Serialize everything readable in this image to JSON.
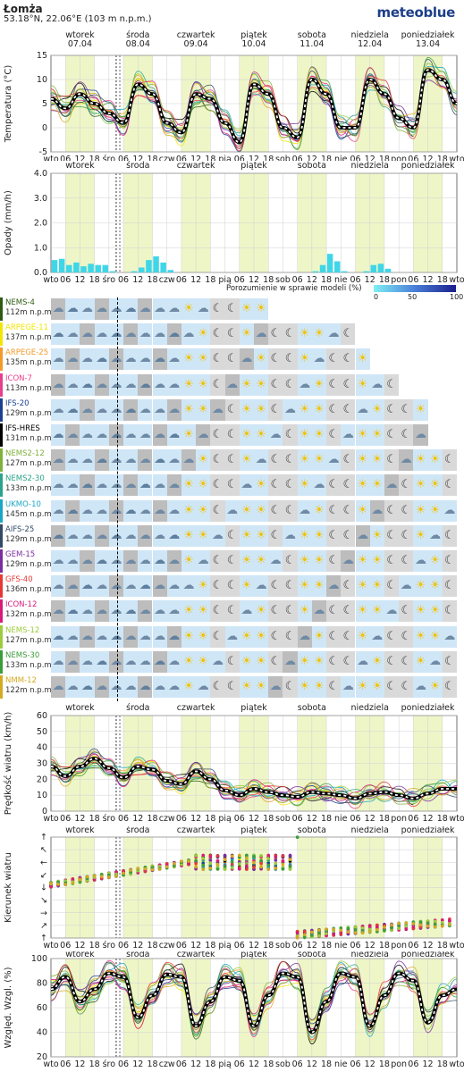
{
  "header": {
    "location": "Łomża",
    "coords": "53.18°N, 22.06°E (103 m n.p.m.)",
    "brand": "meteoblue"
  },
  "days": [
    {
      "name": "wtorek",
      "date": "07.04",
      "weekend": false
    },
    {
      "name": "środa",
      "date": "08.04",
      "weekend": false
    },
    {
      "name": "czwartek",
      "date": "09.04",
      "weekend": false
    },
    {
      "name": "piątek",
      "date": "10.04",
      "weekend": false
    },
    {
      "name": "sobota",
      "date": "11.04",
      "weekend": true
    },
    {
      "name": "niedziela",
      "date": "12.04",
      "weekend": true
    },
    {
      "name": "poniedziałek",
      "date": "13.04",
      "weekend": false
    }
  ],
  "hour_ticks": [
    "wto",
    "06",
    "12",
    "18",
    "śro",
    "06",
    "12",
    "18",
    "czw",
    "06",
    "12",
    "18",
    "pią",
    "06",
    "12",
    "18",
    "sob",
    "06",
    "12",
    "18",
    "nie",
    "06",
    "12",
    "18",
    "pon",
    "06",
    "12",
    "18",
    "wto"
  ],
  "colors": {
    "day_shade": "#eef6c8",
    "weekend_red": "#d0021b",
    "ensemble_mean": "#000000",
    "precip": "#3fd6e8",
    "agreement_low": "#7ff0f5",
    "agreement_high": "#1a1f8c",
    "cloudy_bg": "#cfe6f7",
    "overcast_bg": "#bdbdbd"
  },
  "agreement": {
    "label": "Porozumienie w sprawie modeli (%)",
    "ticks": [
      "0",
      "50",
      "100"
    ]
  },
  "models": [
    {
      "name": "NEMS-4",
      "elev": "112m n.p.m",
      "color": "#2e5b12",
      "length": 0.52
    },
    {
      "name": "ARPEGE-11",
      "elev": "137m n.p.m",
      "color": "#f2e600",
      "length": 0.74
    },
    {
      "name": "ARPEGE-25",
      "elev": "135m n.p.m",
      "color": "#f39a2b",
      "length": 0.78
    },
    {
      "name": "ICON-7",
      "elev": "113m n.p.m",
      "color": "#e83e8c",
      "length": 0.85
    },
    {
      "name": "IFS-20",
      "elev": "129m n.p.m",
      "color": "#1b3f8f",
      "length": 0.93
    },
    {
      "name": "IFS-HRES",
      "elev": "131m n.p.m",
      "color": "#000000",
      "length": 0.93
    },
    {
      "name": "NEMS2-12",
      "elev": "127m n.p.m",
      "color": "#7fb13a",
      "length": 1.0
    },
    {
      "name": "NEMS2-30",
      "elev": "133m n.p.m",
      "color": "#2aa38a",
      "length": 1.0
    },
    {
      "name": "UKMO-10",
      "elev": "145m n.p.m",
      "color": "#1aa6c4",
      "length": 1.0
    },
    {
      "name": "AIFS-25",
      "elev": "129m n.p.m",
      "color": "#334a66",
      "length": 1.0
    },
    {
      "name": "GEM-15",
      "elev": "129m n.p.m",
      "color": "#7b2da0",
      "length": 1.0
    },
    {
      "name": "GFS-40",
      "elev": "136m n.p.m",
      "color": "#e53935",
      "length": 1.0
    },
    {
      "name": "ICON-12",
      "elev": "132m n.p.m",
      "color": "#d81b7a",
      "length": 1.0
    },
    {
      "name": "NEMS-12",
      "elev": "127m n.p.m",
      "color": "#9ccc3c",
      "length": 1.0
    },
    {
      "name": "NEMS-30",
      "elev": "133m n.p.m",
      "color": "#3a9c3a",
      "length": 1.0
    },
    {
      "name": "NMM-12",
      "elev": "122m n.p.m",
      "color": "#d4aa22",
      "length": 1.0
    }
  ],
  "icons": {
    "cloud": "☁",
    "sun": "☀",
    "moon": "☾",
    "rain": "🌧"
  },
  "chart_data": [
    {
      "type": "line",
      "ylabel": "Temperatura (°C)",
      "ylim": [
        -5,
        15
      ],
      "yticks": [
        -5,
        0,
        5,
        10,
        15
      ],
      "x_hours": [
        0,
        6,
        12,
        18,
        24,
        30,
        36,
        42,
        48,
        54,
        60,
        66,
        72,
        78,
        84,
        90,
        96,
        102,
        108,
        114,
        120,
        126,
        132,
        138,
        144,
        150,
        156,
        162,
        168
      ],
      "series": [
        {
          "values": [
            6,
            4,
            7,
            5,
            3,
            1,
            9,
            7,
            1,
            -1,
            7,
            6,
            1,
            -3,
            9,
            7,
            0,
            -2,
            10,
            7,
            0,
            0,
            10,
            7,
            2,
            0,
            12,
            10,
            5
          ]
        }
      ]
    },
    {
      "type": "bar",
      "ylabel": "Opady (mm/h)",
      "ylim": [
        0,
        4
      ],
      "yticks": [
        0.0,
        1.0,
        2.0,
        3.0,
        4.0
      ],
      "x_hours": [
        0,
        3,
        6,
        9,
        12,
        15,
        18,
        21,
        24,
        27,
        30,
        33,
        36,
        39,
        42,
        45,
        48,
        51,
        54,
        57,
        60,
        63,
        66,
        69,
        72,
        75,
        78,
        81,
        84,
        87,
        90,
        93,
        96,
        99,
        102,
        105,
        108,
        111,
        114,
        117,
        120,
        123,
        126,
        129,
        132,
        135,
        138,
        141,
        144,
        147,
        150,
        153,
        156,
        159,
        162,
        165
      ],
      "series": [
        {
          "values": [
            0.5,
            0.55,
            0.3,
            0.4,
            0.25,
            0.35,
            0.3,
            0.3,
            0.05,
            0.0,
            0.0,
            0.05,
            0.2,
            0.5,
            0.65,
            0.4,
            0.1,
            0.0,
            0.0,
            0.0,
            0.0,
            0.0,
            0.0,
            0.0,
            0.0,
            0.0,
            0.0,
            0.0,
            0.0,
            0.0,
            0.0,
            0.0,
            0.0,
            0.0,
            0.0,
            0.0,
            0.05,
            0.3,
            0.75,
            0.45,
            0.05,
            0.0,
            0.0,
            0.05,
            0.3,
            0.35,
            0.15,
            0.0,
            0.0,
            0.0,
            0.0,
            0.0,
            0.0,
            0.0,
            0.0,
            0.0
          ]
        }
      ]
    },
    {
      "type": "line",
      "ylabel": "Prędkość wiatru (km/h)",
      "ylim": [
        0,
        60
      ],
      "yticks": [
        0,
        10,
        20,
        30,
        40,
        50,
        60
      ],
      "x_hours": [
        0,
        6,
        12,
        18,
        24,
        30,
        36,
        42,
        48,
        54,
        60,
        66,
        72,
        78,
        84,
        90,
        96,
        102,
        108,
        114,
        120,
        126,
        132,
        138,
        144,
        150,
        156,
        162,
        168
      ],
      "series": [
        {
          "values": [
            28,
            22,
            28,
            33,
            27,
            21,
            28,
            26,
            19,
            17,
            25,
            20,
            13,
            10,
            14,
            12,
            10,
            9,
            12,
            11,
            10,
            8,
            11,
            12,
            10,
            8,
            11,
            14,
            14
          ]
        }
      ]
    },
    {
      "type": "scatter",
      "ylabel": "Kierunek wiatru",
      "ylim": [
        0,
        360
      ],
      "yticks": [
        "↑",
        "↗",
        "→",
        "↘",
        "↓",
        "↙",
        "←",
        "↖",
        "↑"
      ]
    },
    {
      "type": "line",
      "ylabel": "Względ. Wzgl. (%)",
      "ylim": [
        20,
        100
      ],
      "yticks": [
        20,
        40,
        60,
        80,
        100
      ],
      "x_hours": [
        0,
        6,
        12,
        18,
        24,
        30,
        36,
        42,
        48,
        54,
        60,
        66,
        72,
        78,
        84,
        90,
        96,
        102,
        108,
        114,
        120,
        126,
        132,
        138,
        144,
        150,
        156,
        162,
        168
      ],
      "series": [
        {
          "values": [
            75,
            85,
            65,
            75,
            88,
            85,
            52,
            70,
            87,
            85,
            45,
            65,
            85,
            82,
            45,
            70,
            88,
            85,
            40,
            65,
            88,
            85,
            45,
            70,
            88,
            82,
            48,
            70,
            75
          ]
        }
      ]
    }
  ]
}
